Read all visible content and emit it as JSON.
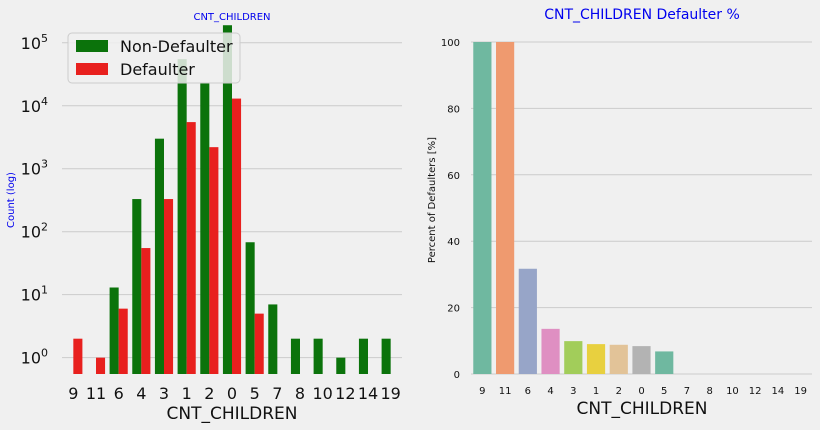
{
  "colors": {
    "non_defaulter": "#0b730b",
    "defaulter": "#e8201e",
    "title_blue": "#0000ee",
    "grid": "#cbcbcb",
    "background": "#f0f0f0"
  },
  "chart_data": [
    {
      "type": "bar",
      "title": "CNT_CHILDREN",
      "xlabel": "CNT_CHILDREN",
      "ylabel": "Count (log)",
      "yscale": "log",
      "ylim": [
        0.55,
        230000
      ],
      "yticks": [
        1,
        10,
        100,
        1000,
        10000,
        100000
      ],
      "ytick_labels": [
        {
          "base": "10",
          "exp": "0"
        },
        {
          "base": "10",
          "exp": "1"
        },
        {
          "base": "10",
          "exp": "2"
        },
        {
          "base": "10",
          "exp": "3"
        },
        {
          "base": "10",
          "exp": "4"
        },
        {
          "base": "10",
          "exp": "5"
        }
      ],
      "grid": true,
      "legend_position": "top-left",
      "categories": [
        "9",
        "11",
        "6",
        "4",
        "3",
        "1",
        "2",
        "0",
        "5",
        "7",
        "8",
        "10",
        "12",
        "14",
        "19"
      ],
      "series": [
        {
          "name": "Non-Defaulter",
          "color": "#0b730b",
          "values": [
            null,
            null,
            13,
            330,
            3000,
            55000,
            23000,
            190000,
            68,
            7,
            2,
            2,
            1,
            2,
            2
          ]
        },
        {
          "name": "Defaulter",
          "color": "#e8201e",
          "values": [
            2,
            1,
            6,
            55,
            330,
            5500,
            2200,
            13000,
            5,
            null,
            null,
            null,
            null,
            null,
            null
          ]
        }
      ]
    },
    {
      "type": "bar",
      "title": "CNT_CHILDREN Defaulter %",
      "xlabel": "CNT_CHILDREN",
      "ylabel": "Percent of Defaulters [%]",
      "ylim": [
        0,
        100
      ],
      "yticks": [
        0,
        20,
        40,
        60,
        80,
        100
      ],
      "grid": true,
      "categories": [
        "9",
        "11",
        "6",
        "4",
        "3",
        "1",
        "2",
        "0",
        "5",
        "7",
        "8",
        "10",
        "12",
        "14",
        "19"
      ],
      "values": [
        100,
        100,
        31.7,
        13.6,
        9.9,
        9.0,
        8.8,
        8.4,
        6.8,
        0,
        0,
        0,
        0,
        0,
        0
      ],
      "bar_colors": [
        "#6fb8a0",
        "#ef9a6f",
        "#97a5c8",
        "#df8fc2",
        "#a2cd5a",
        "#e8d03f",
        "#e2c398",
        "#b3b3b3",
        "#6fb8a0",
        "#ef9a6f",
        "#97a5c8",
        "#df8fc2",
        "#a2cd5a",
        "#e8d03f",
        "#e2c398"
      ]
    }
  ]
}
